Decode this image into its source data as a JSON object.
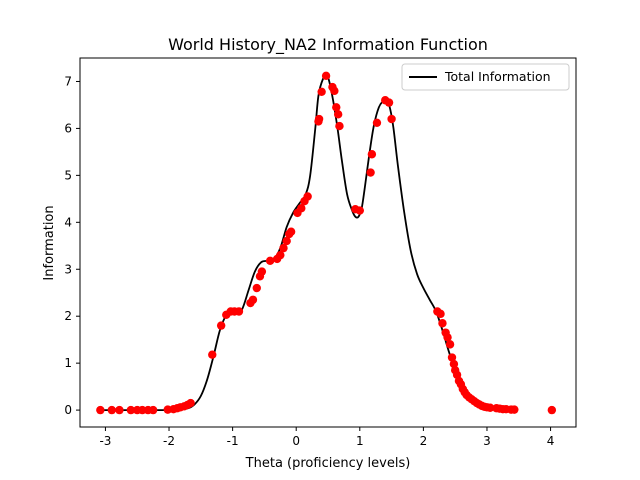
{
  "chart_data": {
    "type": "line",
    "title": "World History_NA2 Information Function",
    "xlabel": "Theta (proficiency levels)",
    "ylabel": "Information",
    "xlim": [
      -3.4,
      4.4
    ],
    "ylim": [
      -0.36,
      7.5
    ],
    "xticks": [
      -3,
      -2,
      -1,
      0,
      1,
      2,
      3,
      4
    ],
    "yticks": [
      0,
      1,
      2,
      3,
      4,
      5,
      6,
      7
    ],
    "grid": false,
    "legend": {
      "position": "top-right",
      "entries": [
        "Total Information"
      ]
    },
    "series": [
      {
        "name": "Total Information",
        "color": "#000000",
        "x": [
          -3.1,
          -2.5,
          -2.1,
          -1.9,
          -1.7,
          -1.6,
          -1.5,
          -1.4,
          -1.3,
          -1.2,
          -1.1,
          -1.0,
          -0.95,
          -0.85,
          -0.75,
          -0.65,
          -0.55,
          -0.45,
          -0.35,
          -0.25,
          -0.15,
          -0.05,
          0.05,
          0.15,
          0.22,
          0.3,
          0.35,
          0.42,
          0.48,
          0.52,
          0.58,
          0.65,
          0.72,
          0.8,
          0.88,
          0.93,
          0.98,
          1.03,
          1.08,
          1.15,
          1.22,
          1.3,
          1.38,
          1.43,
          1.48,
          1.53,
          1.6,
          1.7,
          1.8,
          1.9,
          2.0,
          2.1,
          2.2,
          2.3,
          2.4,
          2.5,
          2.6,
          2.7,
          2.8,
          2.9,
          3.0,
          3.1,
          3.2,
          3.4
        ],
        "y": [
          0.0,
          0.0,
          0.0,
          0.01,
          0.04,
          0.12,
          0.3,
          0.65,
          1.15,
          1.7,
          2.02,
          2.1,
          2.05,
          2.15,
          2.55,
          2.95,
          3.15,
          3.18,
          3.22,
          3.45,
          3.9,
          4.2,
          4.4,
          4.6,
          5.0,
          6.0,
          6.7,
          7.05,
          7.12,
          7.0,
          6.6,
          6.0,
          5.3,
          4.6,
          4.25,
          4.12,
          4.12,
          4.3,
          4.75,
          5.45,
          6.05,
          6.45,
          6.6,
          6.6,
          6.4,
          6.0,
          5.2,
          4.2,
          3.4,
          2.9,
          2.6,
          2.35,
          2.1,
          1.7,
          1.25,
          0.85,
          0.55,
          0.32,
          0.18,
          0.1,
          0.05,
          0.02,
          0.01,
          0.0
        ]
      },
      {
        "name": "",
        "type": "scatter",
        "color": "#ff0000",
        "x": [
          -3.08,
          -2.9,
          -2.78,
          -2.6,
          -2.5,
          -2.42,
          -2.33,
          -2.25,
          -2.02,
          -1.93,
          -1.87,
          -1.82,
          -1.76,
          -1.71,
          -1.66,
          -1.32,
          -1.18,
          -1.1,
          -1.03,
          -0.97,
          -0.9,
          -0.72,
          -0.68,
          -0.62,
          -0.57,
          -0.54,
          -0.41,
          -0.3,
          -0.25,
          -0.2,
          -0.15,
          -0.11,
          -0.08,
          0.02,
          0.08,
          0.13,
          0.18,
          0.35,
          0.36,
          0.4,
          0.47,
          0.57,
          0.6,
          0.63,
          0.66,
          0.68,
          0.93,
          1.0,
          1.17,
          1.19,
          1.27,
          1.4,
          1.46,
          1.5,
          2.22,
          2.27,
          2.3,
          2.35,
          2.38,
          2.42,
          2.45,
          2.48,
          2.5,
          2.53,
          2.56,
          2.59,
          2.62,
          2.65,
          2.68,
          2.72,
          2.76,
          2.8,
          2.84,
          2.88,
          2.92,
          2.96,
          3.0,
          3.05,
          3.15,
          3.2,
          3.25,
          3.3,
          3.38,
          3.43,
          4.02
        ],
        "y": [
          0.0,
          0.0,
          0.0,
          0.0,
          0.0,
          0.0,
          0.0,
          0.0,
          0.01,
          0.02,
          0.04,
          0.06,
          0.08,
          0.11,
          0.15,
          1.18,
          1.8,
          2.03,
          2.1,
          2.1,
          2.1,
          2.28,
          2.35,
          2.6,
          2.85,
          2.95,
          3.18,
          3.22,
          3.3,
          3.45,
          3.6,
          3.75,
          3.8,
          4.2,
          4.3,
          4.45,
          4.55,
          6.15,
          6.2,
          6.78,
          7.12,
          6.88,
          6.8,
          6.45,
          6.3,
          6.05,
          4.28,
          4.25,
          5.06,
          5.45,
          6.12,
          6.6,
          6.55,
          6.2,
          2.1,
          2.05,
          1.85,
          1.65,
          1.55,
          1.4,
          1.12,
          0.98,
          0.85,
          0.75,
          0.62,
          0.55,
          0.45,
          0.38,
          0.32,
          0.27,
          0.23,
          0.19,
          0.15,
          0.12,
          0.09,
          0.07,
          0.06,
          0.05,
          0.04,
          0.03,
          0.02,
          0.02,
          0.01,
          0.01,
          0.0
        ]
      }
    ]
  }
}
